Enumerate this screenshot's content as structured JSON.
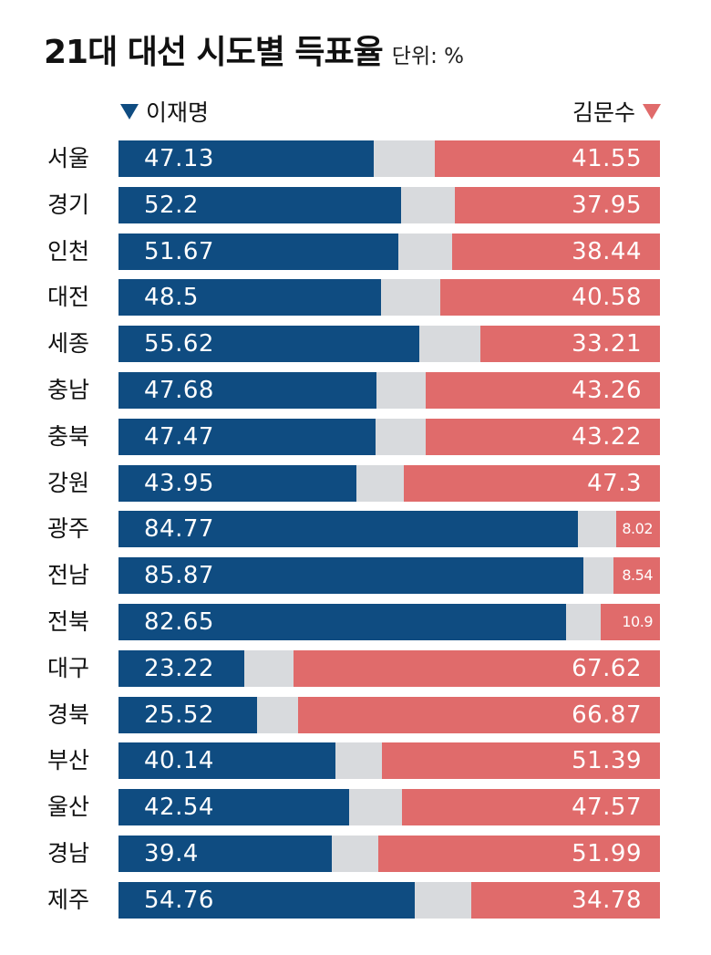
{
  "header": {
    "title": "21대 대선 시도별 득표율",
    "unit": "단위: %"
  },
  "legend": {
    "left": "이재명",
    "right": "김문수"
  },
  "colors": {
    "lee": "#0f4c81",
    "kim": "#e06b6b",
    "other": "#d8dadd"
  },
  "chart_data": {
    "type": "bar",
    "title": "21대 대선 시도별 득표율",
    "unit": "단위: %",
    "categories": [
      "서울",
      "경기",
      "인천",
      "대전",
      "세종",
      "충남",
      "충북",
      "강원",
      "광주",
      "전남",
      "전북",
      "대구",
      "경북",
      "부산",
      "울산",
      "경남",
      "제주"
    ],
    "series": [
      {
        "name": "이재명",
        "color": "#0f4c81",
        "values": [
          "47.13",
          "52.2",
          "51.67",
          "48.5",
          "55.62",
          "47.68",
          "47.47",
          "43.95",
          "84.77",
          "85.87",
          "82.65",
          "23.22",
          "25.52",
          "40.14",
          "42.54",
          "39.4",
          "54.76"
        ]
      },
      {
        "name": "김문수",
        "color": "#e06b6b",
        "values": [
          "41.55",
          "37.95",
          "38.44",
          "40.58",
          "33.21",
          "43.26",
          "43.22",
          "47.3",
          "8.02",
          "8.54",
          "10.9",
          "67.62",
          "66.87",
          "51.39",
          "47.57",
          "51.99",
          "34.78"
        ]
      }
    ],
    "xlim": [
      0,
      100
    ]
  }
}
